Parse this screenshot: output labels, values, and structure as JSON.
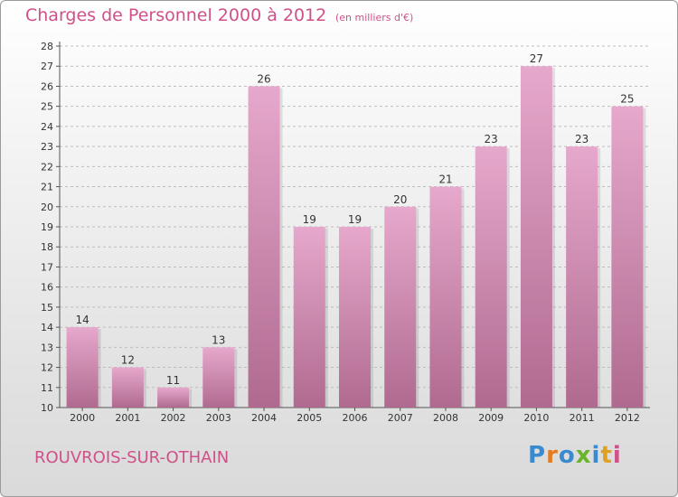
{
  "header": {
    "title": "Charges de Personnel 2000 à 2012",
    "subtitle": "(en milliers d'€)"
  },
  "footer": {
    "place_name": "ROUVROIS-SUR-OTHAIN",
    "logo_text": "Proxiti",
    "logo_letters": [
      {
        "ch": "P",
        "color": "#3a8ad0"
      },
      {
        "ch": "r",
        "color": "#e67a1e"
      },
      {
        "ch": "o",
        "color": "#3a8ad0"
      },
      {
        "ch": "x",
        "color": "#6ab42c"
      },
      {
        "ch": "i",
        "color": "#3a8ad0"
      },
      {
        "ch": "t",
        "color": "#e0a020"
      },
      {
        "ch": "i",
        "color": "#d0508a"
      }
    ]
  },
  "chart_data": {
    "type": "bar",
    "title": "Charges de Personnel 2000 à 2012",
    "subtitle": "(en milliers d'€)",
    "categories": [
      "2000",
      "2001",
      "2002",
      "2003",
      "2004",
      "2005",
      "2006",
      "2007",
      "2008",
      "2009",
      "2010",
      "2011",
      "2012"
    ],
    "values": [
      14,
      12,
      11,
      13,
      26,
      19,
      19,
      20,
      21,
      23,
      27,
      23,
      25
    ],
    "ylim": [
      10,
      28
    ],
    "yticks": [
      10,
      11,
      12,
      13,
      14,
      15,
      16,
      17,
      18,
      19,
      20,
      21,
      22,
      23,
      24,
      25,
      26,
      27,
      28
    ],
    "grid": "horizontal dashed",
    "bar_color": "#c87aa2",
    "bar_color_light": "#e6a8cc",
    "bar_color_dark": "#b06a90"
  }
}
